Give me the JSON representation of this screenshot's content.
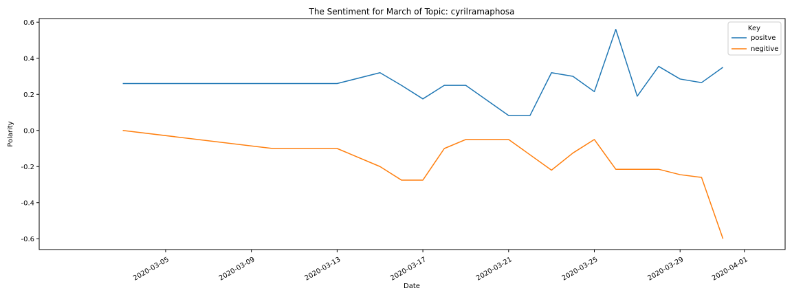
{
  "chart_data": {
    "type": "line",
    "title": "The Sentiment for March of Topic: cyrilramaphosa",
    "xlabel": "Date",
    "ylabel": "Polarity",
    "ylim": [
      -0.66,
      0.62
    ],
    "xlim": [
      "2020-03-01",
      "2020-04-01"
    ],
    "x_ticks": [
      "2020-03-05",
      "2020-03-09",
      "2020-03-13",
      "2020-03-17",
      "2020-03-21",
      "2020-03-25",
      "2020-03-29",
      "2020-04-01"
    ],
    "y_ticks": [
      -0.6,
      -0.4,
      -0.2,
      0.0,
      0.2,
      0.4,
      0.6
    ],
    "grid": false,
    "legend": {
      "title": "Key",
      "placement": "top-right"
    },
    "series": [
      {
        "name": "positve",
        "color": "#1f77b4",
        "points": [
          {
            "x": "2020-03-03",
            "y": 0.26
          },
          {
            "x": "2020-03-13",
            "y": 0.26
          },
          {
            "x": "2020-03-15",
            "y": 0.32
          },
          {
            "x": "2020-03-16",
            "y": 0.25
          },
          {
            "x": "2020-03-17",
            "y": 0.175
          },
          {
            "x": "2020-03-18",
            "y": 0.25
          },
          {
            "x": "2020-03-19",
            "y": 0.25
          },
          {
            "x": "2020-03-21",
            "y": 0.083
          },
          {
            "x": "2020-03-22",
            "y": 0.083
          },
          {
            "x": "2020-03-23",
            "y": 0.32
          },
          {
            "x": "2020-03-24",
            "y": 0.3
          },
          {
            "x": "2020-03-25",
            "y": 0.215
          },
          {
            "x": "2020-03-26",
            "y": 0.56
          },
          {
            "x": "2020-03-27",
            "y": 0.19
          },
          {
            "x": "2020-03-28",
            "y": 0.355
          },
          {
            "x": "2020-03-29",
            "y": 0.285
          },
          {
            "x": "2020-03-30",
            "y": 0.265
          },
          {
            "x": "2020-03-31",
            "y": 0.35
          }
        ]
      },
      {
        "name": "negitive",
        "color": "#ff7f0e",
        "points": [
          {
            "x": "2020-03-03",
            "y": 0.0
          },
          {
            "x": "2020-03-10",
            "y": -0.1
          },
          {
            "x": "2020-03-13",
            "y": -0.1
          },
          {
            "x": "2020-03-15",
            "y": -0.2
          },
          {
            "x": "2020-03-16",
            "y": -0.275
          },
          {
            "x": "2020-03-17",
            "y": -0.275
          },
          {
            "x": "2020-03-18",
            "y": -0.1
          },
          {
            "x": "2020-03-19",
            "y": -0.05
          },
          {
            "x": "2020-03-21",
            "y": -0.05
          },
          {
            "x": "2020-03-23",
            "y": -0.22
          },
          {
            "x": "2020-03-24",
            "y": -0.125
          },
          {
            "x": "2020-03-25",
            "y": -0.05
          },
          {
            "x": "2020-03-26",
            "y": -0.215
          },
          {
            "x": "2020-03-28",
            "y": -0.215
          },
          {
            "x": "2020-03-29",
            "y": -0.245
          },
          {
            "x": "2020-03-30",
            "y": -0.26
          },
          {
            "x": "2020-03-31",
            "y": -0.6
          }
        ]
      }
    ]
  }
}
